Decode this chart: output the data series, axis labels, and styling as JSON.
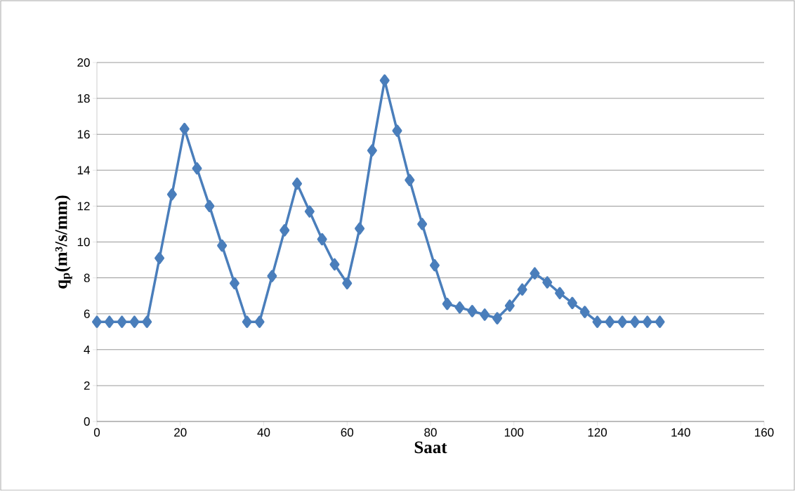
{
  "chart_data": {
    "type": "line",
    "xlabel": "Saat",
    "ylabel": "q$_{p}$(m³/s/mm)",
    "x": [
      0,
      3,
      6,
      9,
      12,
      15,
      18,
      21,
      24,
      27,
      30,
      33,
      36,
      39,
      42,
      45,
      48,
      51,
      54,
      57,
      60,
      63,
      66,
      69,
      72,
      75,
      78,
      81,
      84,
      87,
      90,
      93,
      96,
      99,
      102,
      105,
      108,
      111,
      114,
      117,
      120,
      123,
      126,
      129,
      132,
      135
    ],
    "series": [
      {
        "color": "#4a7ebb",
        "values": [
          5.55,
          5.55,
          5.55,
          5.55,
          5.55,
          9.1,
          12.65,
          16.3,
          14.1,
          12.0,
          9.8,
          7.7,
          5.55,
          5.55,
          8.1,
          10.65,
          13.25,
          11.7,
          10.15,
          8.75,
          7.7,
          10.75,
          15.1,
          19.0,
          16.2,
          13.45,
          11.0,
          8.7,
          6.55,
          6.35,
          6.15,
          5.95,
          5.75,
          6.45,
          7.35,
          8.25,
          7.75,
          7.15,
          6.6,
          6.1,
          5.55,
          5.55,
          5.55,
          5.55,
          5.55,
          5.55
        ]
      }
    ],
    "xlim": [
      0,
      160
    ],
    "xticks": [
      0,
      20,
      40,
      60,
      80,
      100,
      120,
      140,
      160
    ],
    "ylim": [
      0,
      20
    ],
    "yticks": [
      0,
      2,
      4,
      6,
      8,
      10,
      12,
      14,
      16,
      18,
      20
    ],
    "grid": "y",
    "marker": "diamond",
    "line_style": "solid"
  }
}
